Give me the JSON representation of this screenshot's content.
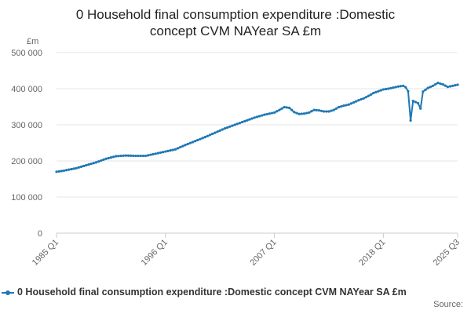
{
  "title_line1": "0 Household final consumption expenditure :Domestic",
  "title_line2": "concept CVM NAYear SA £m",
  "unit_label": "£m",
  "legend_label": "0 Household final consumption expenditure :Domestic concept CVM NAYear SA £m",
  "source_label": "Source:",
  "series_color": "#1f78b4",
  "chart_data": {
    "type": "line",
    "title": "0 Household final consumption expenditure :Domestic concept CVM NAYear SA £m",
    "ylabel": "£m",
    "xlabel": "",
    "ylim": [
      0,
      500000
    ],
    "yticks": [
      0,
      100000,
      200000,
      300000,
      400000,
      500000
    ],
    "ytick_labels": [
      "0",
      "100 000",
      "200 000",
      "300 000",
      "400 000",
      "500 000"
    ],
    "xtick_labels": [
      "1985 Q1",
      "1996 Q1",
      "2007 Q1",
      "2018 Q1",
      "2025 Q3"
    ],
    "xtick_positions": [
      0,
      44,
      88,
      132,
      162
    ],
    "grid": true,
    "legend_position": "bottom",
    "series": [
      {
        "name": "0 Household final consumption expenditure :Domestic concept CVM NAYear SA £m",
        "anchors": [
          [
            0,
            170000
          ],
          [
            3,
            173000
          ],
          [
            8,
            180000
          ],
          [
            12,
            188000
          ],
          [
            16,
            196000
          ],
          [
            20,
            206000
          ],
          [
            24,
            213000
          ],
          [
            28,
            215000
          ],
          [
            32,
            214000
          ],
          [
            36,
            214000
          ],
          [
            40,
            220000
          ],
          [
            44,
            226000
          ],
          [
            48,
            232000
          ],
          [
            52,
            244000
          ],
          [
            56,
            255000
          ],
          [
            60,
            266000
          ],
          [
            64,
            278000
          ],
          [
            68,
            290000
          ],
          [
            72,
            300000
          ],
          [
            76,
            310000
          ],
          [
            80,
            320000
          ],
          [
            84,
            328000
          ],
          [
            88,
            334000
          ],
          [
            90,
            341000
          ],
          [
            92,
            349000
          ],
          [
            94,
            347000
          ],
          [
            96,
            335000
          ],
          [
            98,
            330000
          ],
          [
            100,
            331000
          ],
          [
            102,
            334000
          ],
          [
            104,
            341000
          ],
          [
            106,
            340000
          ],
          [
            108,
            337000
          ],
          [
            110,
            337000
          ],
          [
            112,
            341000
          ],
          [
            114,
            349000
          ],
          [
            116,
            353000
          ],
          [
            118,
            356000
          ],
          [
            120,
            362000
          ],
          [
            122,
            368000
          ],
          [
            124,
            373000
          ],
          [
            126,
            380000
          ],
          [
            128,
            388000
          ],
          [
            130,
            393000
          ],
          [
            132,
            398000
          ],
          [
            134,
            400000
          ],
          [
            136,
            403000
          ],
          [
            138,
            406000
          ],
          [
            140,
            408000
          ],
          [
            141,
            404000
          ],
          [
            142,
            393000
          ],
          [
            143,
            312000
          ],
          [
            144,
            366000
          ],
          [
            146,
            360000
          ],
          [
            147,
            345000
          ],
          [
            148,
            392000
          ],
          [
            150,
            402000
          ],
          [
            152,
            408000
          ],
          [
            154,
            416000
          ],
          [
            156,
            412000
          ],
          [
            158,
            405000
          ],
          [
            160,
            408000
          ],
          [
            162,
            411000
          ]
        ]
      }
    ]
  }
}
